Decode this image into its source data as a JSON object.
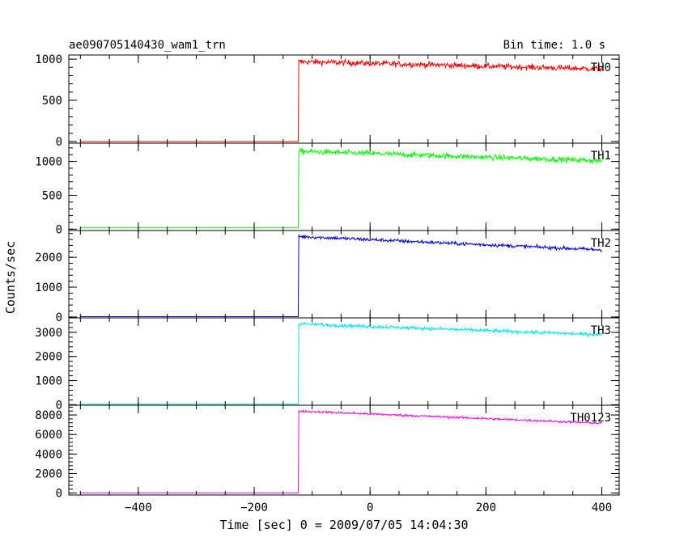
{
  "header": {
    "title": "ae090705140430_wam1_trn",
    "bin_time": "Bin time: 1.0 s"
  },
  "x_axis": {
    "label": "Time [sec] 0 = 2009/07/05 14:04:30",
    "range": [
      -520,
      430
    ],
    "ticks": [
      -400,
      -200,
      0,
      200,
      400
    ],
    "tick_labels": [
      "−400",
      "−200",
      "0",
      "200",
      "400"
    ]
  },
  "y_axis": {
    "label": "Counts/sec"
  },
  "chart_data": {
    "type": "line",
    "x_range": [
      -520,
      430
    ],
    "data_x_range": [
      -500,
      400
    ],
    "step_time": -123,
    "series": [
      {
        "name": "TH0",
        "color": "#ff0000",
        "ylim": [
          -20,
          1050
        ],
        "yticks": [
          0,
          500,
          1000
        ],
        "pre_level": 0,
        "level_start": 970,
        "level_end": 880,
        "noise": 35
      },
      {
        "name": "TH1",
        "color": "#00ff00",
        "ylim": [
          -20,
          1270
        ],
        "yticks": [
          0,
          500,
          1000
        ],
        "pre_level": 20,
        "level_start": 1150,
        "level_end": 1010,
        "noise": 40
      },
      {
        "name": "TH2",
        "color": "#0000dd",
        "ylim": [
          -30,
          2900
        ],
        "yticks": [
          0,
          1000,
          2000
        ],
        "pre_level": 10,
        "level_start": 2700,
        "level_end": 2250,
        "noise": 60
      },
      {
        "name": "TH3",
        "color": "#00e5ee",
        "ylim": [
          -20,
          3600
        ],
        "yticks": [
          0,
          1000,
          2000,
          3000
        ],
        "pre_level": 20,
        "level_start": 3350,
        "level_end": 2900,
        "noise": 70
      },
      {
        "name": "TH0123",
        "color": "#ff00ff",
        "ylim": [
          -200,
          9000
        ],
        "yticks": [
          0,
          2000,
          4000,
          6000,
          8000
        ],
        "pre_level": 0,
        "level_start": 8400,
        "level_end": 7150,
        "noise": 110
      }
    ]
  }
}
